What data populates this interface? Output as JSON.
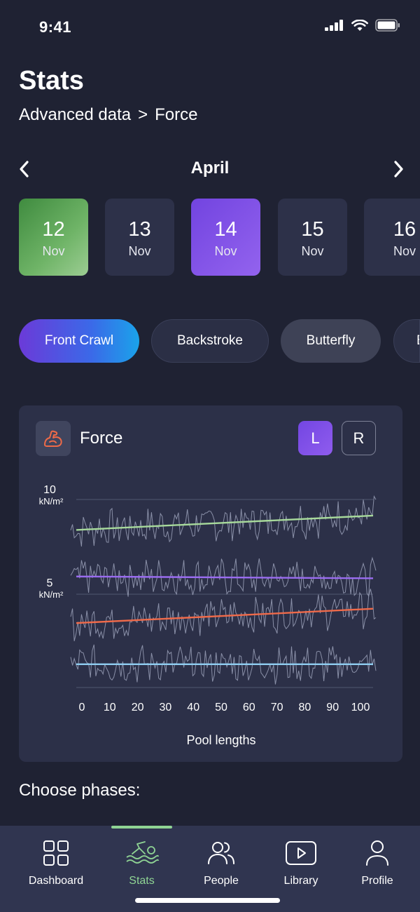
{
  "status": {
    "time": "9:41"
  },
  "header": {
    "title": "Stats",
    "breadcrumb": {
      "parent": "Advanced data",
      "separator": ">",
      "current": "Force"
    }
  },
  "month": {
    "label": "April"
  },
  "days": [
    {
      "day": "12",
      "month": "Nov",
      "state": "green"
    },
    {
      "day": "13",
      "month": "Nov",
      "state": "default"
    },
    {
      "day": "14",
      "month": "Nov",
      "state": "selected"
    },
    {
      "day": "15",
      "month": "Nov",
      "state": "default"
    },
    {
      "day": "16",
      "month": "Nov",
      "state": "default"
    }
  ],
  "strokes": [
    {
      "label": "Front Crawl",
      "state": "active"
    },
    {
      "label": "Backstroke",
      "state": "default"
    },
    {
      "label": "Butterfly",
      "state": "muted"
    },
    {
      "label": "B",
      "state": "default"
    }
  ],
  "force_card": {
    "title": "Force",
    "icon": "flexed-arm-icon",
    "side_left": "L",
    "side_right": "R",
    "selected_side": "L"
  },
  "chart_data": {
    "type": "line",
    "xlabel": "Pool lengths",
    "x_ticks": [
      "0",
      "10",
      "20",
      "30",
      "40",
      "50",
      "60",
      "70",
      "80",
      "90",
      "100"
    ],
    "xlim": [
      0,
      100
    ],
    "y_ticks": [
      {
        "value": "10",
        "unit": "kN/m²"
      },
      {
        "value": "5",
        "unit": "kN/m²"
      }
    ],
    "series": [
      {
        "color": "#a7d99b",
        "trend": [
          8.8,
          9.6
        ],
        "noise": 0.9,
        "band": "top"
      },
      {
        "color": "#9a6cf0",
        "trend": [
          6.2,
          6.1
        ],
        "noise": 0.9,
        "band": "second"
      },
      {
        "color": "#ef6a4a",
        "trend": [
          3.6,
          4.4
        ],
        "noise": 0.9,
        "band": "third"
      },
      {
        "color": "#8fcdf0",
        "trend": [
          1.3,
          1.3
        ],
        "noise": 0.9,
        "band": "bottom"
      }
    ]
  },
  "phases": {
    "title": "Choose phases:"
  },
  "tabs": [
    {
      "label": "Dashboard",
      "icon": "grid-icon"
    },
    {
      "label": "Stats",
      "icon": "swimmer-icon",
      "active": true
    },
    {
      "label": "People",
      "icon": "people-icon"
    },
    {
      "label": "Library",
      "icon": "play-icon"
    },
    {
      "label": "Profile",
      "icon": "person-icon"
    }
  ],
  "colors": {
    "background": "#1f2233",
    "card": "#2c3048",
    "accent_green": "#8fd494",
    "accent_purple": "#8a57ea"
  }
}
